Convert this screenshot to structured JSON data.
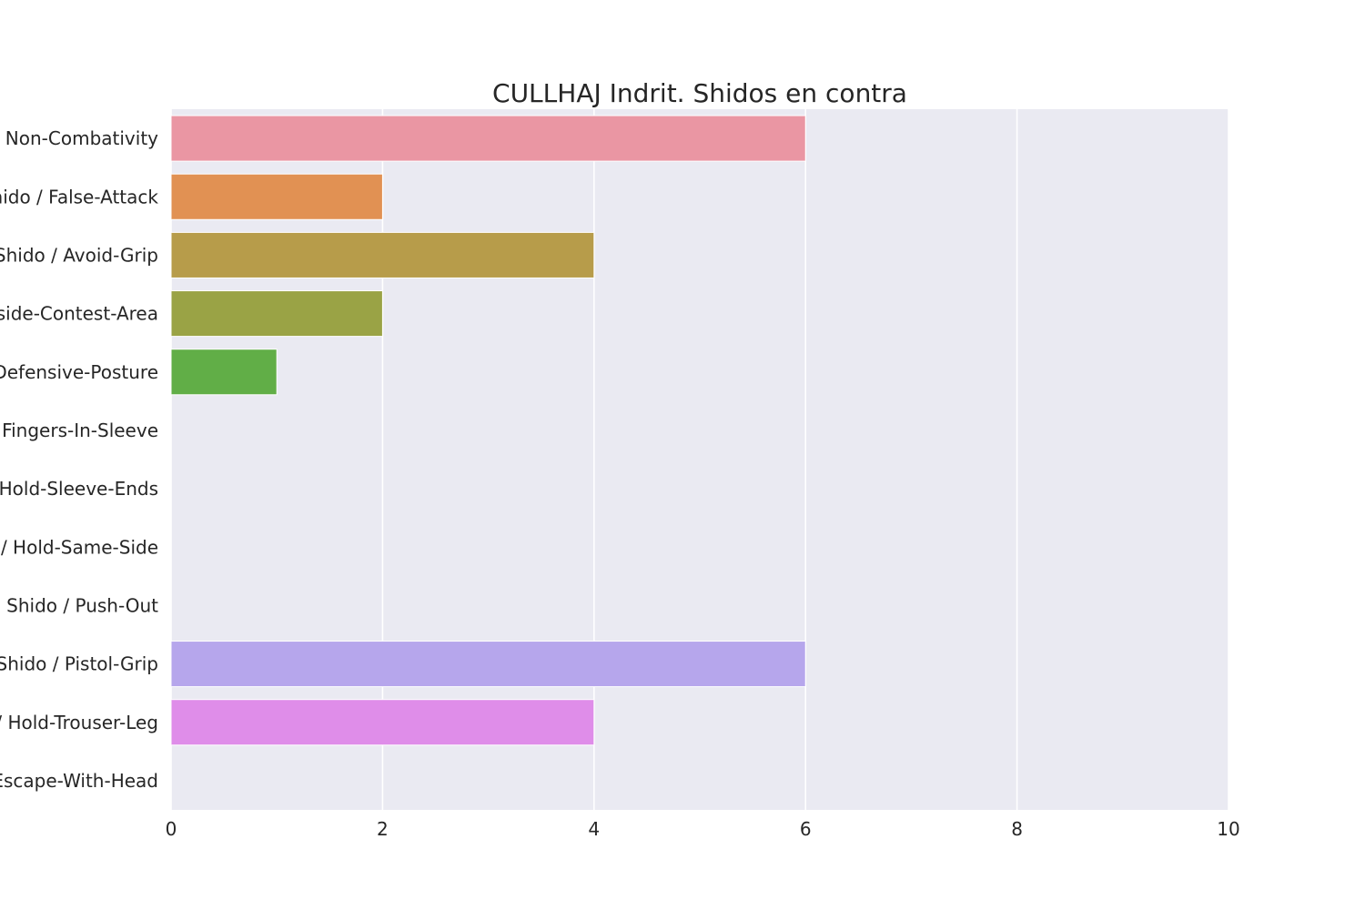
{
  "chart_data": {
    "type": "bar",
    "orientation": "horizontal",
    "title": "CULLHAJ Indrit. Shidos en contra",
    "xlabel": "",
    "ylabel": "",
    "xlim": [
      0,
      10
    ],
    "xticks": [
      0,
      2,
      4,
      6,
      8,
      10
    ],
    "grid": true,
    "legend": "none",
    "categories": [
      "Shido / Non-Combativity",
      "Shido / False-Attack",
      "Shido / Avoid-Grip",
      "Shido / Outside-Contest-Area",
      "Shido / Defensive-Posture",
      "Shido / Fingers-In-Sleeve",
      "Shido / Hold-Sleeve-Ends",
      "Shido / Hold-Same-Side",
      "Shido / Push-Out",
      "Shido / Pistol-Grip",
      "Shido / Hold-Trouser-Leg",
      "Shido / Escape-With-Head"
    ],
    "values": [
      6,
      2,
      4,
      2,
      1,
      0,
      0,
      0,
      0,
      6,
      4,
      0
    ],
    "colors": [
      "#ea96a3",
      "#e19153",
      "#b79c4a",
      "#9aa345",
      "#61ae47",
      "#4fb087",
      "#52aaa8",
      "#56a7c5",
      "#6fa2e6",
      "#b6a6ec",
      "#df8de9",
      "#ec93c6"
    ],
    "background": "#eaeaf2",
    "gridcolor": "#ffffff"
  }
}
